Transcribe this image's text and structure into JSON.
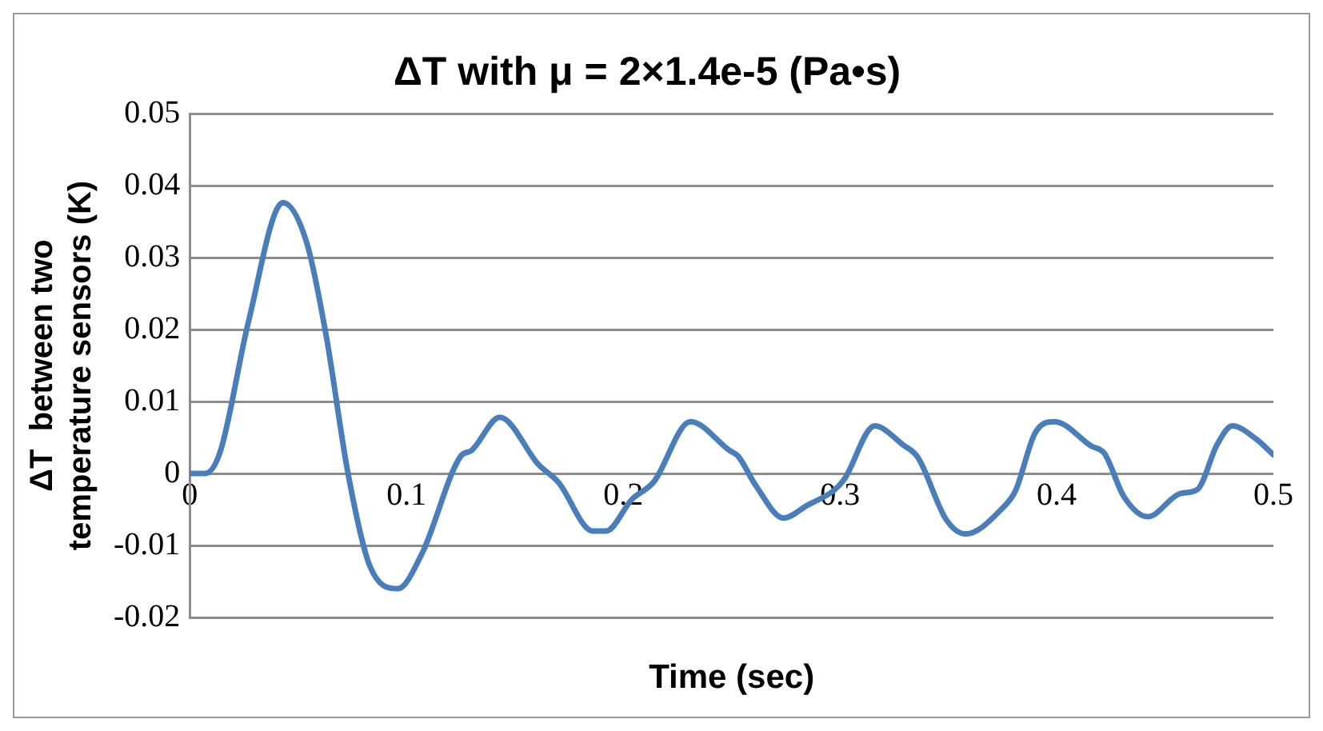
{
  "chart_data": {
    "type": "line",
    "title": "ΔT with μ = 2×1.4e-5 (Pa•s)",
    "xlabel": "Time (sec)",
    "ylabel": "ΔT  between two\ntemperature sensors (K)",
    "x": [
      0,
      0.007,
      0.014,
      0.027,
      0.043,
      0.054,
      0.063,
      0.073,
      0.083,
      0.096,
      0.107,
      0.125,
      0.13,
      0.143,
      0.161,
      0.17,
      0.186,
      0.192,
      0.204,
      0.214,
      0.231,
      0.249,
      0.253,
      0.261,
      0.274,
      0.285,
      0.297,
      0.302,
      0.316,
      0.329,
      0.336,
      0.349,
      0.358,
      0.375,
      0.381,
      0.39,
      0.399,
      0.416,
      0.422,
      0.431,
      0.442,
      0.457,
      0.465,
      0.474,
      0.481,
      0.492,
      0.5
    ],
    "series": [
      {
        "color": "#4a7ebb",
        "values": [
          0,
          0,
          0.003,
          0.021,
          0.0376,
          0.032,
          0.019,
          0,
          -0.0128,
          -0.016,
          -0.0112,
          0.0024,
          0.0032,
          0.0078,
          0.0012,
          -0.0012,
          -0.008,
          -0.008,
          -0.0036,
          -0.0012,
          0.0072,
          0.0032,
          0.0024,
          -0.0016,
          -0.0062,
          -0.0044,
          -0.0024,
          -0.0008,
          0.0066,
          0.004,
          0.0022,
          -0.0064,
          -0.0084,
          -0.0048,
          -0.0024,
          0.0056,
          0.0072,
          0.0038,
          0.0028,
          -0.0032,
          -0.006,
          -0.0028,
          -0.0022,
          0.004,
          0.0066,
          0.0048,
          0.0026
        ]
      }
    ],
    "xlim": [
      0,
      0.5
    ],
    "xticks": [
      0,
      0.1,
      0.2,
      0.3,
      0.4,
      0.5
    ],
    "ylim": [
      -0.02,
      0.05
    ],
    "yticks": [
      -0.02,
      -0.01,
      0,
      0.01,
      0.02,
      0.03,
      0.04,
      0.05
    ],
    "grid": "y",
    "legend": false,
    "marker": "none",
    "line_style": "solid"
  }
}
